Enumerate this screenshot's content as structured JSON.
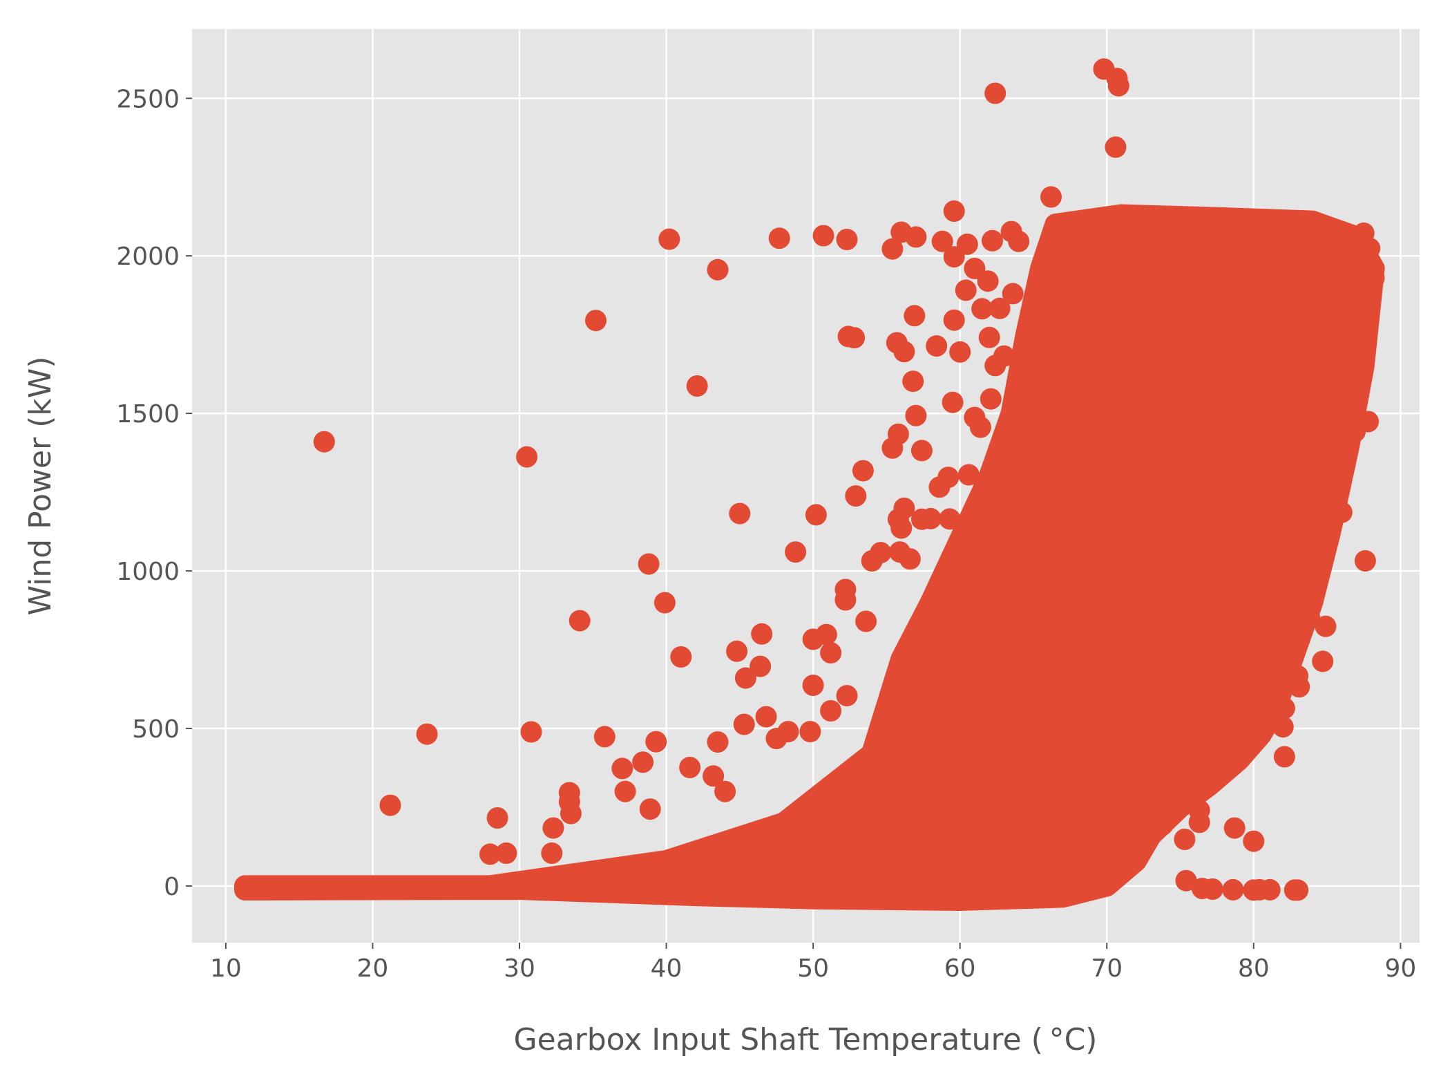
{
  "chart_data": {
    "type": "scatter",
    "xlabel": "Gearbox Input Shaft Temperature ( °C)",
    "ylabel": "Wind Power (kW)",
    "xlim": [
      7.7,
      91.3
    ],
    "ylim": [
      -180,
      2720
    ],
    "xticks": [
      10,
      20,
      30,
      40,
      50,
      60,
      70,
      80,
      90
    ],
    "yticks": [
      0,
      500,
      1000,
      1500,
      2000,
      2500
    ],
    "grid": true,
    "legend": "none",
    "colors": {
      "background": "#e5e5e5",
      "grid": "#ffffff",
      "marker": "#e24a33",
      "text": "#555555"
    },
    "series": [
      {
        "marker_color": "#e24a33",
        "points": [
          [
            16.7,
            1410
          ],
          [
            30.5,
            1362
          ],
          [
            35.2,
            1795
          ],
          [
            40.2,
            2053
          ],
          [
            43.5,
            1956
          ],
          [
            42.1,
            1587
          ],
          [
            47.7,
            2056
          ],
          [
            50.7,
            2064
          ],
          [
            52.3,
            2052
          ],
          [
            62.4,
            2516
          ],
          [
            69.8,
            2593
          ],
          [
            70.7,
            2563
          ],
          [
            70.8,
            2540
          ],
          [
            70.6,
            2345
          ],
          [
            59.6,
            2142
          ],
          [
            66.2,
            2187
          ],
          [
            38.8,
            1022
          ],
          [
            39.9,
            899
          ],
          [
            34.1,
            842
          ],
          [
            41.0,
            727
          ],
          [
            23.7,
            482
          ],
          [
            30.8,
            489
          ],
          [
            21.2,
            256
          ],
          [
            28.5,
            216
          ],
          [
            44.8,
            745
          ],
          [
            45.0,
            1182
          ],
          [
            48.8,
            1060
          ],
          [
            46.5,
            800
          ],
          [
            46.4,
            697
          ],
          [
            45.4,
            660
          ],
          [
            50.2,
            1178
          ],
          [
            52.2,
            941
          ],
          [
            52.2,
            908
          ],
          [
            52.9,
            1238
          ],
          [
            53.4,
            1318
          ],
          [
            52.4,
            1744
          ],
          [
            52.8,
            1740
          ],
          [
            55.7,
            1724
          ],
          [
            56.2,
            1696
          ],
          [
            56.8,
            1602
          ],
          [
            57.0,
            1493
          ],
          [
            56.9,
            1810
          ],
          [
            55.8,
            1434
          ],
          [
            55.4,
            1390
          ],
          [
            57.4,
            1382
          ],
          [
            59.6,
            1796
          ],
          [
            59.5,
            1535
          ],
          [
            60.0,
            1695
          ],
          [
            60.4,
            1891
          ],
          [
            58.4,
            1714
          ],
          [
            55.4,
            2022
          ],
          [
            56.0,
            2075
          ],
          [
            57.0,
            2060
          ],
          [
            55.8,
            1164
          ],
          [
            56.0,
            1136
          ],
          [
            56.2,
            1199
          ],
          [
            57.4,
            1164
          ],
          [
            50.9,
            798
          ],
          [
            51.2,
            740
          ],
          [
            50.0,
            783
          ],
          [
            50.0,
            637
          ],
          [
            52.3,
            604
          ],
          [
            49.8,
            490
          ],
          [
            48.3,
            490
          ],
          [
            46.8,
            537
          ],
          [
            44.0,
            300
          ],
          [
            43.5,
            457
          ],
          [
            39.3,
            458
          ],
          [
            35.8,
            474
          ],
          [
            37.0,
            373
          ],
          [
            38.4,
            393
          ],
          [
            37.2,
            300
          ],
          [
            38.9,
            244
          ],
          [
            33.4,
            296
          ],
          [
            33.4,
            267
          ],
          [
            33.5,
            230
          ],
          [
            32.3,
            184
          ],
          [
            29.1,
            104
          ],
          [
            28.0,
            101
          ],
          [
            32.2,
            104
          ],
          [
            41.6,
            376
          ],
          [
            43.2,
            349
          ],
          [
            45.3,
            513
          ],
          [
            47.5,
            468
          ],
          [
            51.2,
            556
          ],
          [
            53.6,
            840
          ],
          [
            54.0,
            1032
          ],
          [
            54.6,
            1058
          ],
          [
            55.9,
            1060
          ],
          [
            56.6,
            1038
          ],
          [
            59.3,
            1165
          ],
          [
            58.0,
            1166
          ],
          [
            58.6,
            1266
          ],
          [
            59.2,
            1297
          ],
          [
            60.6,
            1305
          ],
          [
            61.0,
            1487
          ],
          [
            61.4,
            1456
          ],
          [
            62.1,
            1546
          ],
          [
            62.4,
            1652
          ],
          [
            63.0,
            1682
          ],
          [
            62.0,
            1741
          ],
          [
            61.5,
            1832
          ],
          [
            62.7,
            1833
          ],
          [
            63.6,
            1880
          ],
          [
            61.9,
            1920
          ],
          [
            62.2,
            2048
          ],
          [
            63.5,
            2077
          ],
          [
            60.5,
            2037
          ],
          [
            58.8,
            2046
          ],
          [
            59.6,
            1997
          ],
          [
            61.0,
            1960
          ],
          [
            64.0,
            2046
          ],
          [
            87.5,
            2072
          ],
          [
            87.9,
            2024
          ],
          [
            88.2,
            1960
          ],
          [
            88.2,
            1930
          ],
          [
            87.8,
            1810
          ],
          [
            87.8,
            1474
          ],
          [
            87.6,
            1032
          ],
          [
            86.8,
            1548
          ],
          [
            86.9,
            1442
          ],
          [
            86.0,
            1578
          ],
          [
            86.0,
            1186
          ],
          [
            85.1,
            1210
          ],
          [
            84.9,
            1310
          ],
          [
            84.9,
            824
          ],
          [
            84.7,
            713
          ],
          [
            83.8,
            852
          ],
          [
            84.5,
            1000
          ],
          [
            84.2,
            1010
          ],
          [
            83.1,
            632
          ],
          [
            83.0,
            667
          ],
          [
            82.1,
            564
          ],
          [
            82.0,
            505
          ],
          [
            82.1,
            410
          ],
          [
            81.9,
            640
          ],
          [
            81.6,
            522
          ],
          [
            79.6,
            441
          ],
          [
            80.0,
            142
          ],
          [
            78.7,
            184
          ],
          [
            76.3,
            240
          ],
          [
            76.3,
            202
          ],
          [
            75.3,
            148
          ],
          [
            73.8,
            194
          ],
          [
            78.6,
            -12
          ],
          [
            80.0,
            -13
          ],
          [
            80.4,
            -12
          ],
          [
            81.1,
            -12
          ],
          [
            82.8,
            -13
          ],
          [
            83.0,
            -13
          ],
          [
            75.4,
            17
          ],
          [
            76.5,
            -8
          ],
          [
            77.2,
            -10
          ]
        ]
      }
    ]
  }
}
